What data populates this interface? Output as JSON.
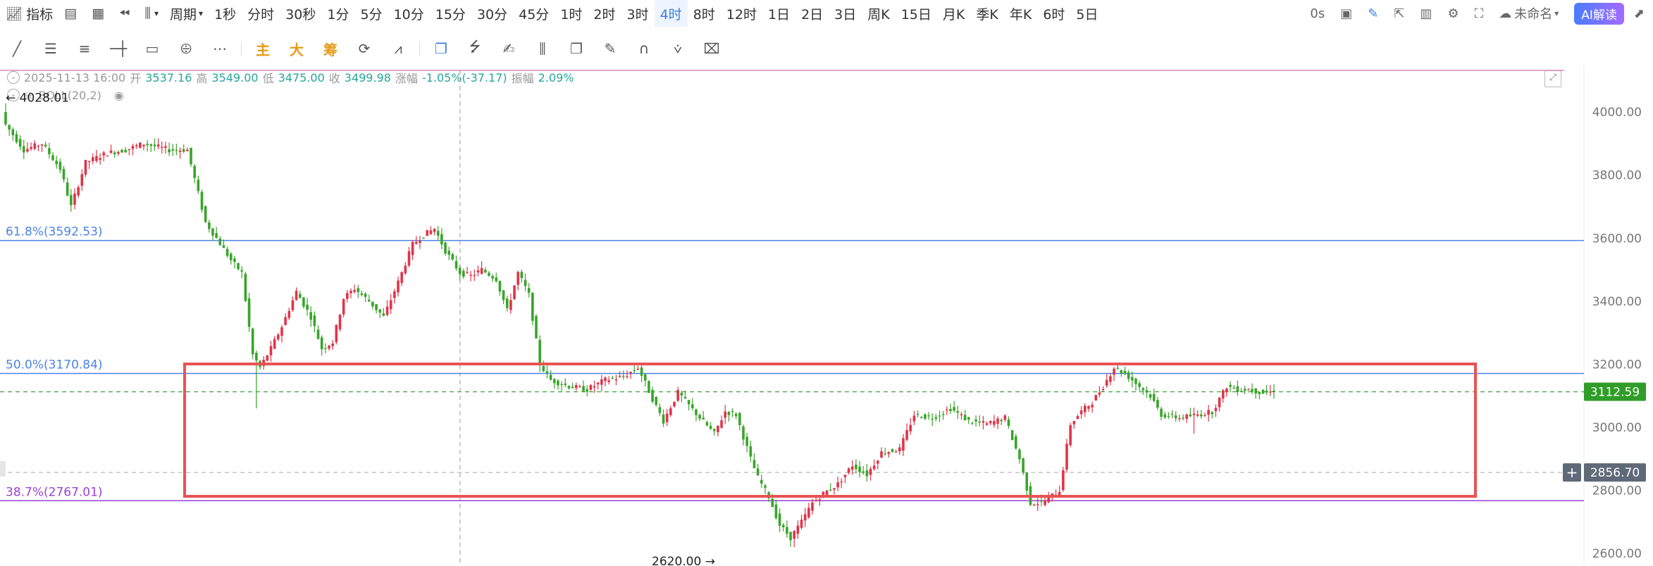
{
  "topbar": {
    "indicator_label": "指标",
    "period_label": "周期",
    "timeframes": [
      "1秒",
      "分时",
      "30秒",
      "1分",
      "5分",
      "10分",
      "15分",
      "30分",
      "45分",
      "1时",
      "2时",
      "3时",
      "4时",
      "8时",
      "12时",
      "1日",
      "2日",
      "3日",
      "周K",
      "15日",
      "月K",
      "季K",
      "年K",
      "6时",
      "5日"
    ],
    "active_timeframe": "4时",
    "latency": "0s",
    "layout_name": "未命名",
    "ai_button": "AI解读"
  },
  "toolbar": {
    "text_tools": [
      "主",
      "大",
      "筹"
    ]
  },
  "info": {
    "date": "2025-11-13 16:00",
    "open_label": "开",
    "open": "3537.16",
    "high_label": "高",
    "high": "3549.00",
    "low_label": "低",
    "low": "3475.00",
    "close_label": "收",
    "close": "3499.98",
    "change_label": "涨幅",
    "change": "-1.05%(-37.17)",
    "amp_label": "振幅",
    "amp": "2.09%",
    "indicator": "BOLL(20,2)"
  },
  "colors": {
    "up": "#e0344a",
    "down": "#3aa42b",
    "fib_blue": "#4c82e6",
    "fib_purple": "#9b3fd6",
    "box": "#e85454",
    "price_tag": "#2f9d27",
    "crosshair_tag": "#5f6a78"
  },
  "chart_data": {
    "type": "candlestick",
    "ylim": [
      2560,
      4150
    ],
    "y_ticks": [
      "4000.00",
      "3800.00",
      "3600.00",
      "3400.00",
      "3200.00",
      "3000.00",
      "2800.00",
      "2600.00"
    ],
    "fib_levels": [
      {
        "label": "61.8%(3592.53)",
        "value": 3592.53
      },
      {
        "label": "50.0%(3170.84)",
        "value": 3170.84
      },
      {
        "label": "38.7%(2767.01)",
        "value": 2767.01
      }
    ],
    "high_marker": {
      "label": "4028.01",
      "value": 4028.01
    },
    "low_marker": {
      "label": "2620.00",
      "value": 2620.0
    },
    "last_price": {
      "label": "3112.59",
      "value": 3112.59
    },
    "crosshair_price": {
      "label": "2856.70",
      "value": 2856.7
    },
    "anchors": [
      [
        0,
        3960
      ],
      [
        5,
        3880
      ],
      [
        10,
        3900
      ],
      [
        15,
        3820
      ],
      [
        18,
        3700
      ],
      [
        22,
        3840
      ],
      [
        28,
        3870
      ],
      [
        33,
        3880
      ],
      [
        38,
        3900
      ],
      [
        45,
        3880
      ],
      [
        50,
        3880
      ],
      [
        55,
        3650
      ],
      [
        58,
        3600
      ],
      [
        62,
        3530
      ],
      [
        65,
        3490
      ],
      [
        68,
        3230
      ],
      [
        70,
        3190
      ],
      [
        73,
        3250
      ],
      [
        76,
        3320
      ],
      [
        80,
        3430
      ],
      [
        84,
        3350
      ],
      [
        87,
        3250
      ],
      [
        90,
        3270
      ],
      [
        93,
        3410
      ],
      [
        96,
        3440
      ],
      [
        100,
        3400
      ],
      [
        104,
        3350
      ],
      [
        108,
        3460
      ],
      [
        112,
        3580
      ],
      [
        115,
        3610
      ],
      [
        118,
        3630
      ],
      [
        121,
        3560
      ],
      [
        125,
        3490
      ],
      [
        128,
        3480
      ],
      [
        131,
        3500
      ],
      [
        135,
        3470
      ],
      [
        138,
        3370
      ],
      [
        141,
        3490
      ],
      [
        144,
        3420
      ],
      [
        147,
        3200
      ],
      [
        150,
        3150
      ],
      [
        155,
        3130
      ],
      [
        160,
        3120
      ],
      [
        165,
        3150
      ],
      [
        170,
        3160
      ],
      [
        174,
        3190
      ],
      [
        178,
        3090
      ],
      [
        181,
        3020
      ],
      [
        185,
        3110
      ],
      [
        188,
        3070
      ],
      [
        191,
        3030
      ],
      [
        195,
        2980
      ],
      [
        198,
        3050
      ],
      [
        201,
        3040
      ],
      [
        205,
        2900
      ],
      [
        207,
        2840
      ],
      [
        210,
        2780
      ],
      [
        213,
        2690
      ],
      [
        216,
        2650
      ],
      [
        219,
        2700
      ],
      [
        222,
        2760
      ],
      [
        225,
        2790
      ],
      [
        229,
        2820
      ],
      [
        233,
        2880
      ],
      [
        237,
        2850
      ],
      [
        241,
        2920
      ],
      [
        246,
        2930
      ],
      [
        250,
        3040
      ],
      [
        255,
        3030
      ],
      [
        260,
        3060
      ],
      [
        265,
        3020
      ],
      [
        270,
        3010
      ],
      [
        275,
        3030
      ],
      [
        279,
        2900
      ],
      [
        282,
        2760
      ],
      [
        285,
        2760
      ],
      [
        290,
        2800
      ],
      [
        293,
        3010
      ],
      [
        296,
        3050
      ],
      [
        299,
        3080
      ],
      [
        302,
        3130
      ],
      [
        305,
        3190
      ],
      [
        308,
        3170
      ],
      [
        311,
        3140
      ],
      [
        315,
        3100
      ],
      [
        318,
        3040
      ],
      [
        323,
        3030
      ],
      [
        328,
        3040
      ],
      [
        332,
        3050
      ],
      [
        336,
        3130
      ],
      [
        339,
        3120
      ],
      [
        342,
        3120
      ],
      [
        346,
        3110
      ],
      [
        349,
        3112.59
      ]
    ]
  }
}
